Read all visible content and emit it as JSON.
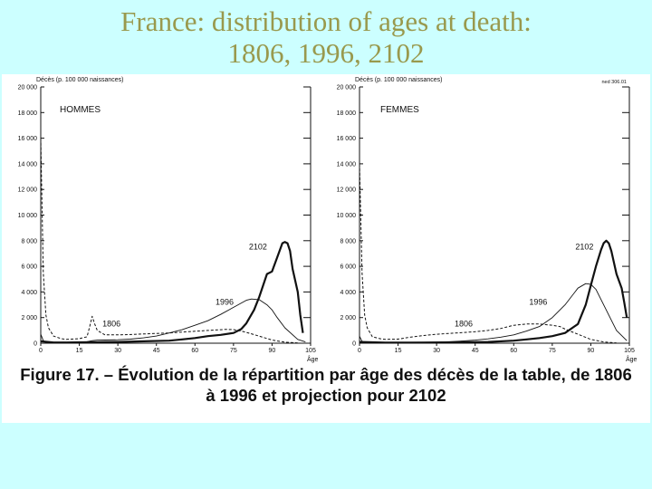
{
  "title": {
    "line1": "France:  distribution of ages at death:",
    "line2": "1806, 1996, 2102"
  },
  "caption": {
    "line1": "Figure 17. – Évolution de la répartition par âge des décès de la table, de 1806",
    "line2": "à 1996 et projection pour 2102"
  },
  "colors": {
    "background": "#ccffff",
    "title": "#99994d",
    "figure_background": "#ffffff",
    "ink": "#111111"
  },
  "chart_data": [
    {
      "type": "line",
      "title": "HOMMES",
      "ylabel": "Décès (p. 100 000 naissances)",
      "xlabel": "Âge",
      "xlim": [
        0,
        105
      ],
      "ylim": [
        0,
        20000
      ],
      "xticks": [
        "0",
        "15",
        "30",
        "45",
        "60",
        "75",
        "90",
        "105"
      ],
      "yticks": [
        "0",
        "2 000",
        "4 000",
        "6 000",
        "8 000",
        "10 000",
        "12 000",
        "14 000",
        "16 000",
        "18 000",
        "20 000"
      ],
      "grid": false,
      "annotations": [
        "1806",
        "1996",
        "2102"
      ],
      "series": [
        {
          "name": "1806",
          "style": "dashed",
          "x": [
            0,
            1,
            2,
            3,
            5,
            8,
            10,
            15,
            18,
            19,
            20,
            21,
            22,
            25,
            30,
            35,
            40,
            45,
            50,
            55,
            60,
            65,
            70,
            72,
            75,
            78,
            80,
            85,
            90,
            95,
            100
          ],
          "y": [
            16000,
            5500,
            2200,
            1200,
            550,
            350,
            300,
            350,
            500,
            1250,
            2100,
            1500,
            1000,
            650,
            650,
            680,
            720,
            760,
            800,
            870,
            930,
            1000,
            1050,
            1080,
            1060,
            950,
            850,
            550,
            250,
            80,
            20
          ]
        },
        {
          "name": "1996",
          "style": "solid",
          "x": [
            0,
            1,
            2,
            5,
            10,
            15,
            18,
            20,
            22,
            25,
            30,
            35,
            40,
            45,
            50,
            55,
            60,
            65,
            70,
            75,
            80,
            82,
            85,
            88,
            90,
            92,
            95,
            100,
            103
          ],
          "y": [
            700,
            200,
            80,
            50,
            40,
            60,
            120,
            200,
            240,
            250,
            270,
            320,
            420,
            560,
            800,
            1050,
            1400,
            1750,
            2250,
            2800,
            3350,
            3450,
            3400,
            3000,
            2600,
            2000,
            1200,
            300,
            100
          ]
        },
        {
          "name": "2102",
          "style": "bold",
          "x": [
            0,
            5,
            10,
            20,
            30,
            40,
            50,
            55,
            60,
            65,
            70,
            75,
            78,
            80,
            83,
            85,
            88,
            90,
            92,
            94,
            95,
            96,
            97,
            98,
            100,
            101,
            102
          ],
          "y": [
            150,
            60,
            60,
            80,
            100,
            150,
            200,
            300,
            400,
            550,
            650,
            800,
            1100,
            1550,
            2600,
            3600,
            5400,
            5600,
            6700,
            7800,
            7900,
            7800,
            7200,
            5800,
            4000,
            2200,
            800
          ]
        }
      ]
    },
    {
      "type": "line",
      "title": "FEMMES",
      "ylabel": "Décès (p. 100 000 naissances)",
      "xlabel": "Âge",
      "xlim": [
        0,
        105
      ],
      "ylim": [
        0,
        20000
      ],
      "xticks": [
        "0",
        "15",
        "30",
        "45",
        "60",
        "75",
        "90",
        "105"
      ],
      "yticks": [
        "0",
        "2 000",
        "4 000",
        "6 000",
        "8 000",
        "10 000",
        "12 000",
        "14 000",
        "16 000",
        "18 000",
        "20 000"
      ],
      "grid": false,
      "annotations": [
        "1806",
        "1996",
        "2102",
        "ned 306.01"
      ],
      "series": [
        {
          "name": "1806",
          "style": "dashed",
          "x": [
            0,
            1,
            2,
            3,
            5,
            8,
            10,
            15,
            20,
            25,
            30,
            35,
            40,
            45,
            50,
            55,
            60,
            65,
            70,
            75,
            78,
            80,
            85,
            90,
            95,
            100
          ],
          "y": [
            14000,
            5500,
            2200,
            1200,
            500,
            350,
            300,
            320,
            480,
            600,
            700,
            760,
            830,
            900,
            1000,
            1150,
            1400,
            1500,
            1500,
            1400,
            1300,
            1100,
            700,
            300,
            100,
            20
          ]
        },
        {
          "name": "1996",
          "style": "solid",
          "x": [
            0,
            1,
            2,
            5,
            10,
            15,
            20,
            25,
            30,
            35,
            40,
            45,
            50,
            55,
            60,
            65,
            70,
            75,
            80,
            85,
            88,
            90,
            92,
            95,
            100,
            104
          ],
          "y": [
            550,
            150,
            60,
            40,
            30,
            40,
            60,
            70,
            90,
            120,
            170,
            240,
            340,
            470,
            650,
            950,
            1300,
            2000,
            3000,
            4300,
            4650,
            4600,
            4200,
            3000,
            1000,
            200
          ]
        },
        {
          "name": "2102",
          "style": "bold",
          "x": [
            0,
            10,
            20,
            30,
            40,
            50,
            60,
            65,
            70,
            75,
            80,
            85,
            88,
            90,
            92,
            94,
            95,
            96,
            97,
            98,
            100,
            102,
            103,
            104
          ],
          "y": [
            100,
            40,
            40,
            60,
            80,
            100,
            200,
            300,
            400,
            550,
            800,
            1500,
            3000,
            4500,
            6000,
            7300,
            7800,
            8000,
            7800,
            7200,
            5400,
            4300,
            3200,
            2000
          ]
        }
      ]
    }
  ]
}
